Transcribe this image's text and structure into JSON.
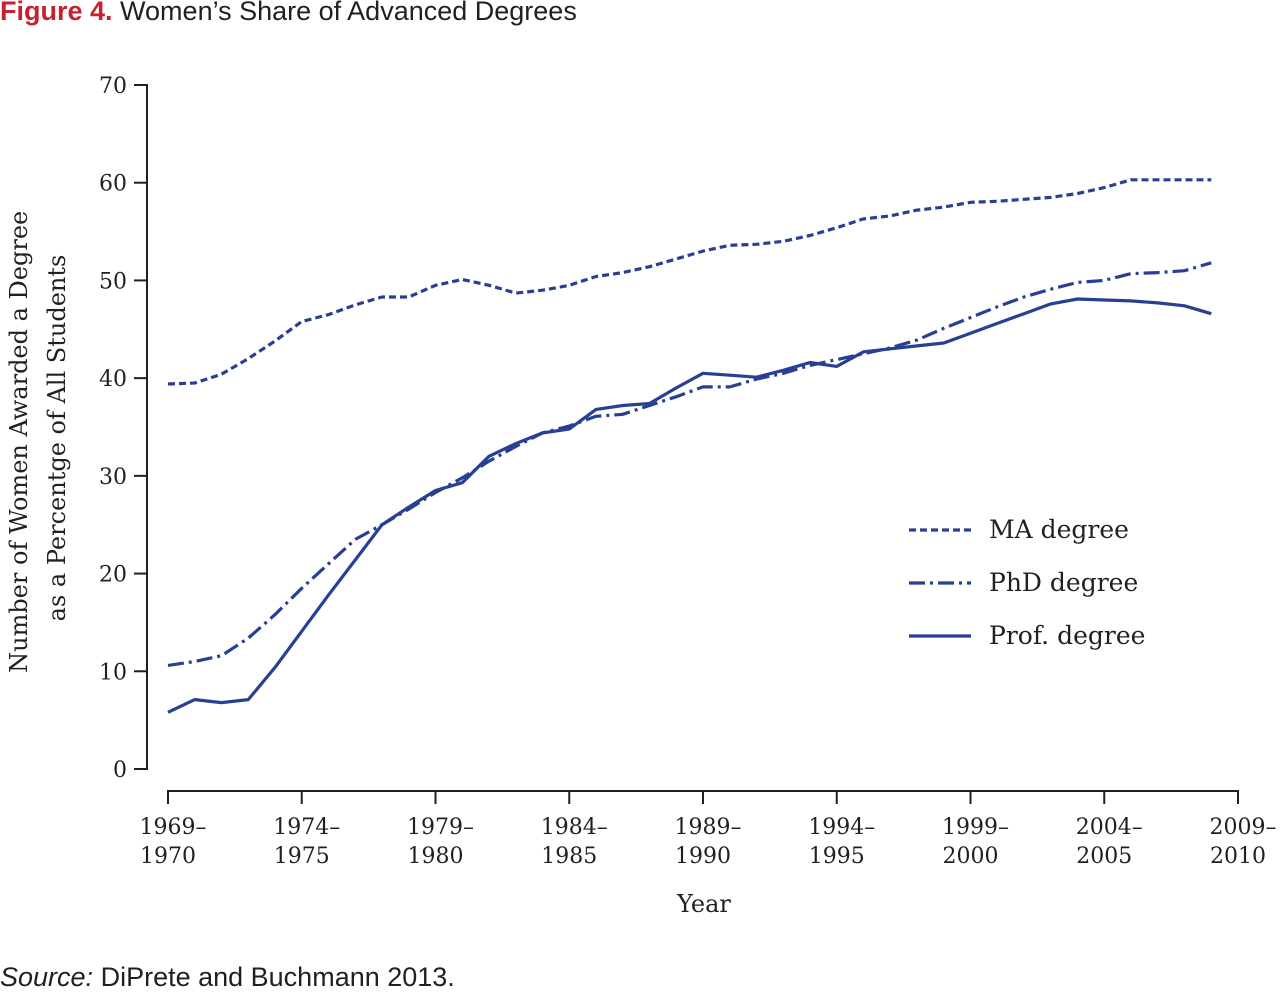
{
  "figure": {
    "label": "Figure 4.",
    "title": "Women’s Share of Advanced Degrees"
  },
  "source": {
    "label": "Source:",
    "text": "DiPrete and Buchmann 2013."
  },
  "colors": {
    "accent": "#c8202f",
    "series": "#283f94",
    "axis": "#231f20"
  },
  "chart_data": {
    "type": "line",
    "xlabel": "Year",
    "ylabel": [
      "Number of Women Awarded a Degree",
      "as a Percentge of All Students"
    ],
    "ylim": [
      0,
      70
    ],
    "yticks": [
      0,
      10,
      20,
      30,
      40,
      50,
      60,
      70
    ],
    "xlim": [
      1969,
      2009
    ],
    "xticks": [
      {
        "x": 1969,
        "label": [
          "1969–",
          "1970"
        ]
      },
      {
        "x": 1974,
        "label": [
          "1974–",
          "1975"
        ]
      },
      {
        "x": 1979,
        "label": [
          "1979–",
          "1980"
        ]
      },
      {
        "x": 1984,
        "label": [
          "1984–",
          "1985"
        ]
      },
      {
        "x": 1989,
        "label": [
          "1989–",
          "1990"
        ]
      },
      {
        "x": 1994,
        "label": [
          "1994–",
          "1995"
        ]
      },
      {
        "x": 1999,
        "label": [
          "1999–",
          "2000"
        ]
      },
      {
        "x": 2004,
        "label": [
          "2004–",
          "2005"
        ]
      },
      {
        "x": 2009,
        "label": [
          "2009–",
          "2010"
        ]
      }
    ],
    "legend_position": "center-right",
    "grid": false,
    "series": [
      {
        "name": "MA degree",
        "style": "dashed",
        "points": [
          [
            1969,
            39.4
          ],
          [
            1970,
            39.5
          ],
          [
            1971,
            40.4
          ],
          [
            1972,
            42
          ],
          [
            1973,
            43.8
          ],
          [
            1974,
            45.8
          ],
          [
            1975,
            46.5
          ],
          [
            1976,
            47.5
          ],
          [
            1977,
            48.3
          ],
          [
            1978,
            48.3
          ],
          [
            1979,
            49.5
          ],
          [
            1980,
            50.1
          ],
          [
            1981,
            49.5
          ],
          [
            1982,
            48.7
          ],
          [
            1983,
            49
          ],
          [
            1984,
            49.5
          ],
          [
            1985,
            50.4
          ],
          [
            1986,
            50.8
          ],
          [
            1987,
            51.4
          ],
          [
            1988,
            52.2
          ],
          [
            1989,
            53
          ],
          [
            1990,
            53.6
          ],
          [
            1991,
            53.7
          ],
          [
            1992,
            54
          ],
          [
            1993,
            54.6
          ],
          [
            1994,
            55.4
          ],
          [
            1995,
            56.3
          ],
          [
            1996,
            56.6
          ],
          [
            1997,
            57.2
          ],
          [
            1998,
            57.5
          ],
          [
            1999,
            58
          ],
          [
            2000,
            58.1
          ],
          [
            2001,
            58.3
          ],
          [
            2002,
            58.5
          ],
          [
            2003,
            58.9
          ],
          [
            2004,
            59.5
          ],
          [
            2005,
            60.3
          ],
          [
            2006,
            60.3
          ],
          [
            2007,
            60.3
          ],
          [
            2008,
            60.3
          ]
        ]
      },
      {
        "name": "PhD degree",
        "style": "dash-dot",
        "points": [
          [
            1969,
            10.6
          ],
          [
            1970,
            11
          ],
          [
            1971,
            11.6
          ],
          [
            1972,
            13.4
          ],
          [
            1973,
            15.8
          ],
          [
            1974,
            18.5
          ],
          [
            1975,
            21
          ],
          [
            1976,
            23.5
          ],
          [
            1977,
            25
          ],
          [
            1978,
            26.6
          ],
          [
            1979,
            28.3
          ],
          [
            1980,
            29.8
          ],
          [
            1981,
            31.5
          ],
          [
            1982,
            33
          ],
          [
            1983,
            34.4
          ],
          [
            1984,
            35.1
          ],
          [
            1985,
            36.1
          ],
          [
            1986,
            36.3
          ],
          [
            1987,
            37.2
          ],
          [
            1988,
            38.1
          ],
          [
            1989,
            39.1
          ],
          [
            1990,
            39.1
          ],
          [
            1991,
            39.9
          ],
          [
            1992,
            40.5
          ],
          [
            1993,
            41.3
          ],
          [
            1994,
            41.9
          ],
          [
            1995,
            42.5
          ],
          [
            1996,
            43.1
          ],
          [
            1997,
            43.9
          ],
          [
            1998,
            45.1
          ],
          [
            1999,
            46.2
          ],
          [
            2000,
            47.3
          ],
          [
            2001,
            48.3
          ],
          [
            2002,
            49.1
          ],
          [
            2003,
            49.8
          ],
          [
            2004,
            50
          ],
          [
            2005,
            50.7
          ],
          [
            2006,
            50.8
          ],
          [
            2007,
            51
          ],
          [
            2008,
            51.8
          ]
        ]
      },
      {
        "name": "Prof. degree",
        "style": "solid",
        "points": [
          [
            1969,
            5.8
          ],
          [
            1970,
            7.1
          ],
          [
            1971,
            6.8
          ],
          [
            1972,
            7.1
          ],
          [
            1973,
            10.4
          ],
          [
            1974,
            14.1
          ],
          [
            1975,
            17.8
          ],
          [
            1976,
            21.4
          ],
          [
            1977,
            25
          ],
          [
            1978,
            26.8
          ],
          [
            1979,
            28.5
          ],
          [
            1980,
            29.3
          ],
          [
            1981,
            32
          ],
          [
            1982,
            33.3
          ],
          [
            1983,
            34.4
          ],
          [
            1984,
            34.8
          ],
          [
            1985,
            36.8
          ],
          [
            1986,
            37.2
          ],
          [
            1987,
            37.4
          ],
          [
            1988,
            39
          ],
          [
            1989,
            40.5
          ],
          [
            1990,
            40.3
          ],
          [
            1991,
            40.1
          ],
          [
            1992,
            40.8
          ],
          [
            1993,
            41.6
          ],
          [
            1994,
            41.2
          ],
          [
            1995,
            42.7
          ],
          [
            1996,
            43
          ],
          [
            1997,
            43.3
          ],
          [
            1998,
            43.6
          ],
          [
            1999,
            44.6
          ],
          [
            2000,
            45.6
          ],
          [
            2001,
            46.6
          ],
          [
            2002,
            47.6
          ],
          [
            2003,
            48.1
          ],
          [
            2004,
            48
          ],
          [
            2005,
            47.9
          ],
          [
            2006,
            47.7
          ],
          [
            2007,
            47.4
          ],
          [
            2008,
            46.6
          ]
        ]
      }
    ]
  }
}
